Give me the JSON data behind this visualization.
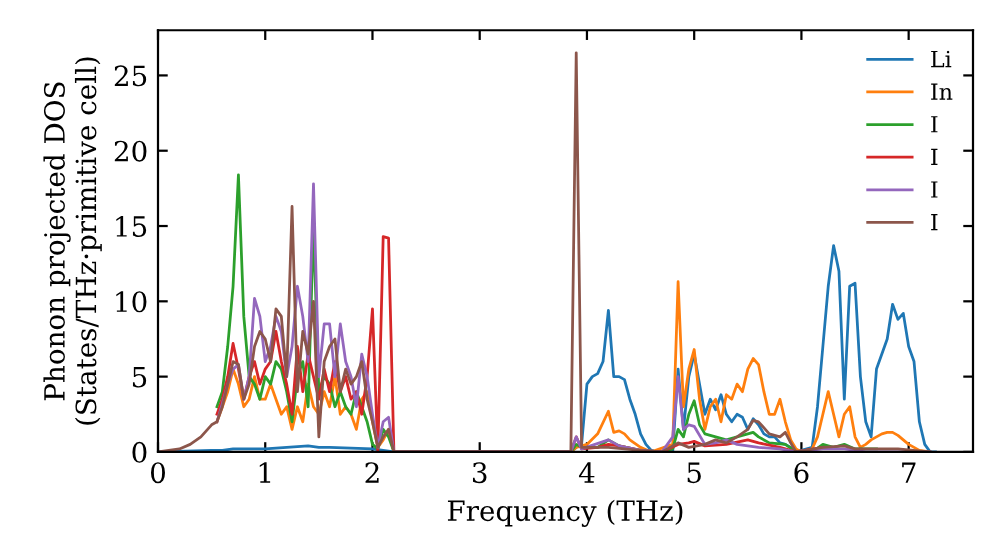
{
  "chart_data": {
    "type": "line",
    "xlabel": "Frequency (THz)",
    "ylabel": "Phonon projected DOS\n(States/THz·primitive cell)",
    "xlim": [
      0,
      7.6
    ],
    "ylim": [
      0,
      28
    ],
    "xticks": [
      0,
      1,
      2,
      3,
      4,
      5,
      6,
      7
    ],
    "yticks": [
      0,
      5,
      10,
      15,
      20,
      25
    ],
    "grid": false,
    "legend": "top right",
    "series": [
      {
        "name": "Li",
        "color": "#1f77b4",
        "x": [
          0,
          0.5,
          0.6,
          0.7,
          0.75,
          0.8,
          1.0,
          1.2,
          1.4,
          1.5,
          1.6,
          2.0,
          2.2,
          3.85,
          3.9,
          3.95,
          4.0,
          4.05,
          4.1,
          4.15,
          4.2,
          4.25,
          4.3,
          4.35,
          4.4,
          4.45,
          4.5,
          4.55,
          4.6,
          4.65,
          4.8,
          4.85,
          4.9,
          4.95,
          5.0,
          5.05,
          5.1,
          5.15,
          5.2,
          5.25,
          5.3,
          5.35,
          5.4,
          5.45,
          5.5,
          5.55,
          5.6,
          5.65,
          5.7,
          5.75,
          5.8,
          5.85,
          5.9,
          5.95,
          6.1,
          6.15,
          6.2,
          6.25,
          6.3,
          6.35,
          6.4,
          6.45,
          6.5,
          6.55,
          6.6,
          6.65,
          6.7,
          6.75,
          6.8,
          6.85,
          6.9,
          6.95,
          7.0,
          7.05,
          7.1,
          7.15,
          7.2,
          7.25
        ],
        "values": [
          0,
          0.1,
          0.1,
          0.2,
          0.2,
          0.2,
          0.2,
          0.3,
          0.4,
          0.3,
          0.3,
          0.2,
          0,
          0,
          0.3,
          0.5,
          4.5,
          5,
          5.2,
          6,
          9.4,
          5,
          5,
          4.8,
          3.5,
          2.5,
          1.2,
          0.5,
          0.1,
          0,
          0,
          5.5,
          1.5,
          5,
          6.5,
          4.5,
          2.5,
          3.5,
          2.8,
          3.8,
          2.5,
          2,
          2.5,
          2.3,
          1.5,
          2.2,
          1.8,
          1.2,
          1,
          1,
          0.6,
          0.5,
          0.3,
          0,
          0.3,
          3,
          7,
          11,
          13.7,
          12,
          3.5,
          11,
          11.2,
          5,
          2,
          1,
          5.5,
          6.5,
          7.5,
          9.8,
          8.8,
          9.2,
          7,
          6,
          2,
          0.5,
          0,
          0
        ]
      },
      {
        "name": "In",
        "color": "#ff7f0e",
        "x": [
          0.55,
          0.6,
          0.65,
          0.7,
          0.75,
          0.8,
          0.85,
          0.9,
          0.95,
          1.0,
          1.05,
          1.1,
          1.15,
          1.2,
          1.25,
          1.3,
          1.35,
          1.4,
          1.45,
          1.5,
          1.55,
          1.6,
          1.65,
          1.7,
          1.75,
          1.8,
          1.85,
          1.9,
          1.95,
          2.0,
          2.05,
          2.1,
          2.15,
          2.2,
          2.25,
          3.85,
          3.9,
          4.0,
          4.1,
          4.2,
          4.25,
          4.3,
          4.35,
          4.4,
          4.5,
          4.6,
          4.8,
          4.85,
          4.9,
          4.95,
          5.0,
          5.05,
          5.1,
          5.15,
          5.2,
          5.25,
          5.3,
          5.35,
          5.4,
          5.45,
          5.5,
          5.55,
          5.6,
          5.65,
          5.7,
          5.75,
          5.8,
          5.85,
          5.9,
          5.95,
          6.0,
          6.1,
          6.15,
          6.2,
          6.25,
          6.3,
          6.35,
          6.4,
          6.45,
          6.5,
          6.55,
          6.6,
          6.65,
          6.7,
          6.75,
          6.8,
          6.85,
          6.9,
          6.95,
          7.0,
          7.05,
          7.1,
          7.2
        ],
        "values": [
          2,
          3,
          4,
          5.5,
          4.5,
          3,
          3.5,
          5,
          3.5,
          3.5,
          4.5,
          3.5,
          2.5,
          3,
          1.5,
          3,
          2,
          4.5,
          3,
          2.5,
          4,
          3,
          5,
          2.5,
          3,
          2.5,
          1.5,
          3.5,
          4,
          2,
          0.3,
          0.8,
          1.5,
          0,
          0,
          0,
          0.3,
          0.5,
          1.2,
          2.7,
          1.3,
          1.4,
          1.2,
          0.8,
          0.3,
          0,
          0.5,
          11.3,
          3,
          5.5,
          6.8,
          3.5,
          1.5,
          3,
          3.5,
          2,
          3.8,
          3.5,
          4.5,
          4,
          5.5,
          6.2,
          5.8,
          4,
          2.5,
          2.5,
          3.5,
          2,
          0.8,
          0.2,
          0,
          0.2,
          1,
          2.5,
          4,
          2.5,
          1,
          2.5,
          3,
          1,
          0.3,
          0.5,
          0.8,
          1,
          1.2,
          1.3,
          1.3,
          1.1,
          0.8,
          0.5,
          0.3,
          0.1,
          0
        ]
      },
      {
        "name": "I",
        "color": "#2ca02c",
        "x": [
          0.55,
          0.6,
          0.65,
          0.7,
          0.75,
          0.8,
          0.85,
          0.9,
          0.95,
          1.0,
          1.05,
          1.1,
          1.15,
          1.2,
          1.25,
          1.3,
          1.35,
          1.4,
          1.45,
          1.5,
          1.55,
          1.6,
          1.65,
          1.7,
          1.75,
          1.8,
          1.85,
          1.9,
          1.95,
          2.0,
          2.05,
          2.1,
          2.15,
          2.2,
          2.25,
          3.85,
          3.9,
          3.95,
          4.1,
          4.2,
          4.3,
          4.5,
          4.7,
          4.8,
          4.85,
          4.9,
          4.95,
          5.0,
          5.05,
          5.1,
          5.2,
          5.3,
          5.4,
          5.5,
          5.55,
          5.6,
          5.7,
          5.85,
          5.95,
          6.1,
          6.2,
          6.25,
          6.3,
          6.4,
          6.5,
          6.7
        ],
        "values": [
          3,
          4,
          7,
          11,
          18.4,
          9,
          5,
          4.5,
          3.5,
          5,
          4.5,
          6,
          5.5,
          4,
          2,
          5,
          6,
          3,
          15,
          4,
          5,
          4.5,
          3,
          4,
          3,
          2.5,
          4,
          3,
          2,
          0.5,
          0.2,
          1.5,
          1,
          0,
          0,
          0,
          0.5,
          0.3,
          0.3,
          0.8,
          0.4,
          0.1,
          0,
          0.2,
          1.5,
          1,
          2.5,
          3.4,
          1.8,
          1.2,
          1,
          0.8,
          1,
          1.2,
          1.3,
          1.0,
          0.6,
          0.5,
          0,
          0,
          0.5,
          0.4,
          0.3,
          0.5,
          0.2,
          0.2
        ]
      },
      {
        "name": "I",
        "color": "#d62728",
        "x": [
          0.55,
          0.6,
          0.65,
          0.7,
          0.75,
          0.8,
          0.85,
          0.9,
          0.95,
          1.0,
          1.05,
          1.1,
          1.15,
          1.2,
          1.25,
          1.3,
          1.35,
          1.4,
          1.45,
          1.5,
          1.55,
          1.6,
          1.65,
          1.7,
          1.75,
          1.8,
          1.85,
          1.9,
          1.95,
          2.0,
          2.05,
          2.1,
          2.15,
          2.2,
          2.25,
          3.85,
          3.9,
          3.95,
          4.1,
          4.2,
          4.3,
          4.5,
          4.7,
          4.85,
          4.95,
          5.0,
          5.1,
          5.3,
          5.5,
          5.6,
          5.8,
          5.95,
          6.2
        ],
        "values": [
          2.5,
          3.5,
          5,
          7.2,
          5.5,
          3.5,
          5,
          6,
          4.5,
          5.5,
          6,
          8,
          6,
          4.5,
          2.5,
          7,
          4,
          6.5,
          5,
          3.5,
          5.5,
          4,
          6,
          4,
          5,
          3.5,
          4,
          2.5,
          5,
          9.5,
          0,
          14.3,
          14.2,
          0,
          0,
          0,
          1,
          0.2,
          0.3,
          0.5,
          0.4,
          0.1,
          0,
          0.5,
          0.6,
          0.7,
          0.4,
          0.5,
          0.8,
          0.6,
          0.3,
          0,
          0.3
        ]
      },
      {
        "name": "I",
        "color": "#9467bd",
        "x": [
          0.55,
          0.6,
          0.65,
          0.7,
          0.75,
          0.8,
          0.85,
          0.9,
          0.95,
          1.0,
          1.05,
          1.1,
          1.15,
          1.2,
          1.25,
          1.3,
          1.35,
          1.4,
          1.45,
          1.5,
          1.55,
          1.6,
          1.65,
          1.7,
          1.75,
          1.8,
          1.85,
          1.9,
          1.95,
          2.0,
          2.05,
          2.1,
          2.15,
          2.2,
          2.25,
          3.85,
          3.9,
          3.95,
          4.2,
          4.3,
          4.5,
          4.7,
          4.8,
          4.85,
          4.9,
          4.95,
          5.0,
          5.1,
          5.2,
          5.3,
          5.4,
          5.5,
          5.6,
          5.8,
          5.95,
          6.2,
          6.4,
          6.6,
          7.2
        ],
        "values": [
          2,
          3.2,
          4.5,
          5.5,
          5.8,
          3.5,
          5,
          10.2,
          9,
          6,
          7,
          9,
          8,
          5,
          7,
          11,
          9,
          6,
          17.8,
          5,
          8.5,
          8.5,
          5,
          8.5,
          6,
          5,
          3,
          6.5,
          5,
          2.5,
          0.3,
          2,
          2.3,
          0,
          0,
          0,
          1,
          0.2,
          0.8,
          0.4,
          0.1,
          0,
          1,
          5,
          1.5,
          1.8,
          1.7,
          0.5,
          0.6,
          0.8,
          0.5,
          0.4,
          0.3,
          0.2,
          0,
          0.2,
          0.2,
          0,
          0
        ]
      },
      {
        "name": "I",
        "color": "#8c564b",
        "x": [
          0,
          0.1,
          0.2,
          0.3,
          0.4,
          0.5,
          0.55,
          0.6,
          0.65,
          0.7,
          0.75,
          0.8,
          0.85,
          0.9,
          0.95,
          1.0,
          1.05,
          1.1,
          1.15,
          1.2,
          1.25,
          1.3,
          1.35,
          1.4,
          1.45,
          1.5,
          1.55,
          1.6,
          1.65,
          1.7,
          1.75,
          1.8,
          1.85,
          1.9,
          1.95,
          2.0,
          2.05,
          2.1,
          2.15,
          2.2,
          2.25,
          3.85,
          3.9,
          3.95,
          4.2,
          4.5,
          4.7,
          4.85,
          4.95,
          5.1,
          5.2,
          5.3,
          5.4,
          5.5,
          5.55,
          5.6,
          5.7,
          5.8,
          5.85,
          5.9,
          5.95,
          6.2,
          6.4,
          6.5,
          6.9,
          7.2
        ],
        "values": [
          0,
          0.1,
          0.2,
          0.5,
          1.0,
          1.8,
          2,
          3,
          4.5,
          6,
          5.8,
          3.5,
          4.5,
          7,
          8,
          7.5,
          6,
          9.5,
          9,
          5,
          16.3,
          4,
          8,
          6.5,
          10,
          1,
          6,
          7,
          7.5,
          4,
          5.5,
          4.5,
          5,
          6,
          3.5,
          2,
          0.3,
          1,
          1.5,
          0,
          0,
          0,
          26.5,
          0.3,
          0.3,
          0.1,
          0,
          0.6,
          0.3,
          0.5,
          0.8,
          0.6,
          1,
          1.5,
          2.1,
          2,
          1.2,
          1,
          1.3,
          0.6,
          0,
          0.3,
          0.4,
          0.2,
          0.2,
          0
        ]
      }
    ]
  }
}
